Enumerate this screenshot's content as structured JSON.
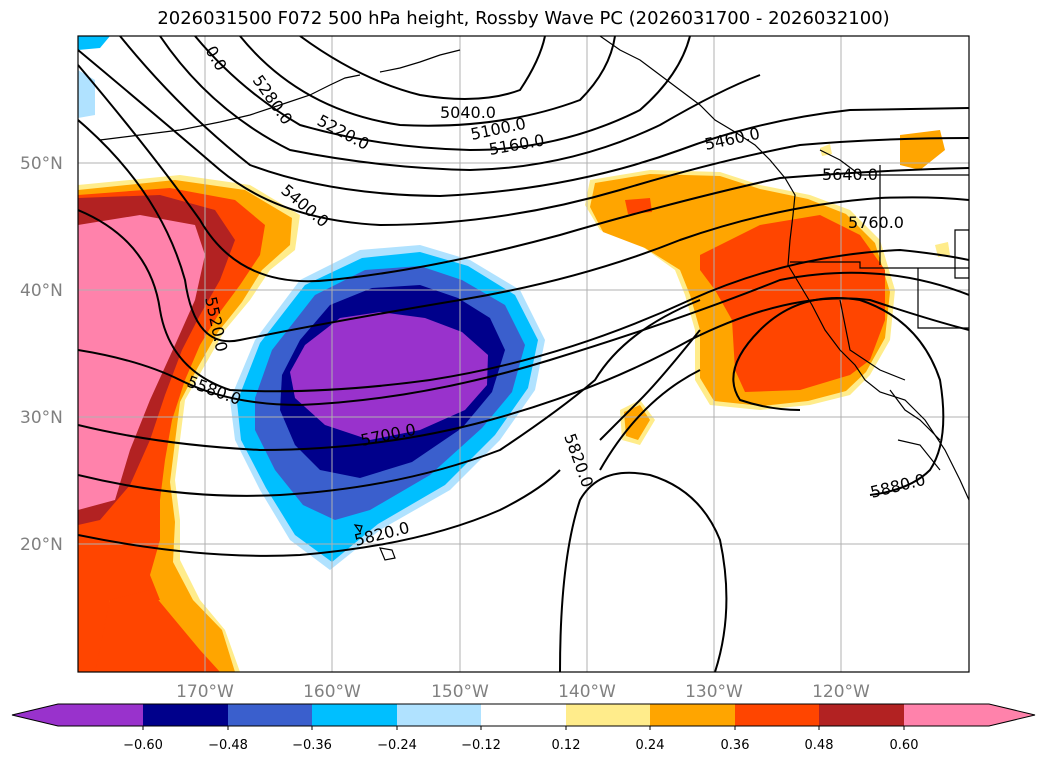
{
  "title": "2026031500 F072 500 hPa height, Rossby Wave PC (2026031700 - 2026032100)",
  "lat_labels": [
    "50°N",
    "40°N",
    "30°N",
    "20°N"
  ],
  "lon_labels": [
    "170°W",
    "160°W",
    "150°W",
    "140°W",
    "130°W",
    "120°W"
  ],
  "contour_labels": [
    "0.0",
    "5280.0",
    "5220.0",
    "5040.0",
    "5100.0",
    "5160.0",
    "5460.0",
    "5640.0",
    "5400.0",
    "5760.0",
    "5520.0",
    "5580.0",
    "5700.0",
    "5820.0",
    "5820.0",
    "5880.0"
  ],
  "colorbar": {
    "ticks": [
      "−0.60",
      "−0.48",
      "−0.36",
      "−0.24",
      "−0.12",
      "0.12",
      "0.24",
      "0.36",
      "0.48",
      "0.60"
    ],
    "colors": [
      "#9932CC",
      "#00008B",
      "#3A5FCD",
      "#00BFFF",
      "#B0E2FF",
      "#FFFFFF",
      "#FFEC8B",
      "#FFA500",
      "#FF4500",
      "#B22222",
      "#FF82AB"
    ]
  },
  "colors": {
    "grid": "#b0b0b0",
    "coast": "#000000",
    "label": "#808080"
  }
}
